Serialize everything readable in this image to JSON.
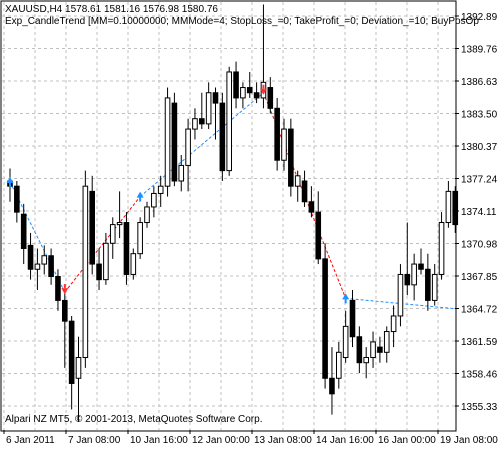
{
  "header": {
    "line1": "XAUUSD,H4  1578.61 1581.16 1576.98 1580.76",
    "line2": "Exp_CandleTrend [MM=0.10000000; MMMode=4; StopLoss_=0; TakeProfit_=0; Deviation_=10; BuyPosOp"
  },
  "footer": {
    "copyright": "Alpari NZ MT5, © 2001-2013, MetaQuotes Software Corp."
  },
  "colors": {
    "bull_body": "#ffffff",
    "bear_body": "#000000",
    "wick": "#000000",
    "grid": "#c0c0c0",
    "sell_line": "#ff0000",
    "buy_line": "#1e90ff",
    "sell_arrow": "#ff3030",
    "buy_arrow": "#1e90ff"
  },
  "chart_data": {
    "type": "candlestick",
    "symbol": "XAUUSD",
    "timeframe": "H4",
    "y_ticks": [
      "1392.89",
      "1389.76",
      "1386.63",
      "1383.50",
      "1380.37",
      "1377.24",
      "1374.11",
      "1370.98",
      "1367.85",
      "1364.72",
      "1361.59",
      "1358.46",
      "1355.33"
    ],
    "ylim": [
      1353.8,
      1394.0
    ],
    "x_ticks": [
      "6 Jan 2011",
      "7 Jan 08:00",
      "10 Jan 16:00",
      "12 Jan 00:00",
      "13 Jan 08:00",
      "14 Jan 16:00",
      "16 Jan 00:00",
      "19 Jan 08:00"
    ],
    "grid": true,
    "candles": [
      {
        "o": 1377.0,
        "h": 1378.2,
        "l": 1375.0,
        "c": 1376.5
      },
      {
        "o": 1376.5,
        "h": 1377.0,
        "l": 1373.0,
        "c": 1374.0
      },
      {
        "o": 1373.8,
        "h": 1374.8,
        "l": 1369.0,
        "c": 1370.5
      },
      {
        "o": 1370.8,
        "h": 1372.0,
        "l": 1367.5,
        "c": 1368.5
      },
      {
        "o": 1368.5,
        "h": 1370.5,
        "l": 1366.5,
        "c": 1369.0
      },
      {
        "o": 1369.0,
        "h": 1370.8,
        "l": 1368.0,
        "c": 1369.8
      },
      {
        "o": 1369.8,
        "h": 1370.5,
        "l": 1367.0,
        "c": 1367.8
      },
      {
        "o": 1367.8,
        "h": 1368.5,
        "l": 1364.5,
        "c": 1365.5
      },
      {
        "o": 1365.5,
        "h": 1366.5,
        "l": 1359.0,
        "c": 1363.5
      },
      {
        "o": 1363.5,
        "h": 1364.0,
        "l": 1355.0,
        "c": 1357.5
      },
      {
        "o": 1358.0,
        "h": 1362.0,
        "l": 1353.8,
        "c": 1360.0
      },
      {
        "o": 1360.0,
        "h": 1378.0,
        "l": 1359.0,
        "c": 1376.5
      },
      {
        "o": 1376.0,
        "h": 1377.5,
        "l": 1368.0,
        "c": 1369.0
      },
      {
        "o": 1369.0,
        "h": 1370.5,
        "l": 1366.5,
        "c": 1367.5
      },
      {
        "o": 1367.5,
        "h": 1372.0,
        "l": 1367.0,
        "c": 1371.0
      },
      {
        "o": 1371.0,
        "h": 1373.5,
        "l": 1369.5,
        "c": 1372.8
      },
      {
        "o": 1372.8,
        "h": 1376.0,
        "l": 1371.5,
        "c": 1373.0
      },
      {
        "o": 1373.0,
        "h": 1374.0,
        "l": 1367.0,
        "c": 1368.0
      },
      {
        "o": 1368.0,
        "h": 1370.5,
        "l": 1367.5,
        "c": 1370.0
      },
      {
        "o": 1370.0,
        "h": 1373.5,
        "l": 1369.5,
        "c": 1373.0
      },
      {
        "o": 1373.0,
        "h": 1375.0,
        "l": 1372.5,
        "c": 1374.5
      },
      {
        "o": 1374.5,
        "h": 1376.5,
        "l": 1373.5,
        "c": 1375.8
      },
      {
        "o": 1375.8,
        "h": 1377.5,
        "l": 1374.5,
        "c": 1376.5
      },
      {
        "o": 1376.5,
        "h": 1386.0,
        "l": 1375.5,
        "c": 1385.0
      },
      {
        "o": 1384.5,
        "h": 1385.5,
        "l": 1376.5,
        "c": 1377.0
      },
      {
        "o": 1377.0,
        "h": 1379.5,
        "l": 1376.0,
        "c": 1378.5
      },
      {
        "o": 1378.5,
        "h": 1383.0,
        "l": 1376.0,
        "c": 1382.0
      },
      {
        "o": 1382.0,
        "h": 1384.0,
        "l": 1381.0,
        "c": 1383.0
      },
      {
        "o": 1383.0,
        "h": 1385.5,
        "l": 1382.0,
        "c": 1382.5
      },
      {
        "o": 1382.5,
        "h": 1386.5,
        "l": 1382.0,
        "c": 1385.5
      },
      {
        "o": 1385.5,
        "h": 1386.0,
        "l": 1381.0,
        "c": 1384.5
      },
      {
        "o": 1384.5,
        "h": 1385.5,
        "l": 1377.0,
        "c": 1378.0
      },
      {
        "o": 1378.0,
        "h": 1388.0,
        "l": 1377.5,
        "c": 1387.5
      },
      {
        "o": 1387.5,
        "h": 1388.5,
        "l": 1384.0,
        "c": 1385.0
      },
      {
        "o": 1385.0,
        "h": 1386.5,
        "l": 1384.0,
        "c": 1386.0
      },
      {
        "o": 1386.0,
        "h": 1387.5,
        "l": 1385.0,
        "c": 1385.5
      },
      {
        "o": 1385.5,
        "h": 1386.5,
        "l": 1384.5,
        "c": 1385.0
      },
      {
        "o": 1385.0,
        "h": 1394.0,
        "l": 1384.0,
        "c": 1386.5
      },
      {
        "o": 1386.0,
        "h": 1387.0,
        "l": 1383.5,
        "c": 1384.0
      },
      {
        "o": 1384.0,
        "h": 1385.0,
        "l": 1378.0,
        "c": 1379.0
      },
      {
        "o": 1379.0,
        "h": 1383.0,
        "l": 1378.0,
        "c": 1382.0
      },
      {
        "o": 1382.0,
        "h": 1383.0,
        "l": 1375.5,
        "c": 1376.5
      },
      {
        "o": 1376.5,
        "h": 1378.0,
        "l": 1375.0,
        "c": 1377.5
      },
      {
        "o": 1377.0,
        "h": 1378.0,
        "l": 1374.5,
        "c": 1375.0
      },
      {
        "o": 1375.0,
        "h": 1376.5,
        "l": 1373.5,
        "c": 1374.0
      },
      {
        "o": 1374.0,
        "h": 1376.0,
        "l": 1369.0,
        "c": 1369.5
      },
      {
        "o": 1369.5,
        "h": 1371.0,
        "l": 1357.0,
        "c": 1358.0
      },
      {
        "o": 1358.0,
        "h": 1361.0,
        "l": 1354.5,
        "c": 1356.5
      },
      {
        "o": 1358.0,
        "h": 1361.5,
        "l": 1357.0,
        "c": 1360.5
      },
      {
        "o": 1360.0,
        "h": 1364.5,
        "l": 1359.5,
        "c": 1363.0
      },
      {
        "o": 1365.5,
        "h": 1366.5,
        "l": 1361.0,
        "c": 1362.0
      },
      {
        "o": 1362.0,
        "h": 1363.0,
        "l": 1358.5,
        "c": 1359.5
      },
      {
        "o": 1359.5,
        "h": 1361.0,
        "l": 1358.0,
        "c": 1360.0
      },
      {
        "o": 1360.0,
        "h": 1362.5,
        "l": 1359.0,
        "c": 1361.5
      },
      {
        "o": 1361.0,
        "h": 1362.0,
        "l": 1359.5,
        "c": 1360.5
      },
      {
        "o": 1360.5,
        "h": 1363.0,
        "l": 1359.5,
        "c": 1362.5
      },
      {
        "o": 1362.5,
        "h": 1365.0,
        "l": 1361.0,
        "c": 1364.0
      },
      {
        "o": 1364.0,
        "h": 1369.0,
        "l": 1363.0,
        "c": 1368.0
      },
      {
        "o": 1368.0,
        "h": 1373.0,
        "l": 1366.0,
        "c": 1367.0
      },
      {
        "o": 1367.0,
        "h": 1370.0,
        "l": 1365.5,
        "c": 1369.0
      },
      {
        "o": 1369.0,
        "h": 1370.5,
        "l": 1368.0,
        "c": 1368.5
      },
      {
        "o": 1368.5,
        "h": 1370.0,
        "l": 1364.5,
        "c": 1365.5
      },
      {
        "o": 1365.5,
        "h": 1369.0,
        "l": 1365.0,
        "c": 1368.0
      },
      {
        "o": 1368.0,
        "h": 1374.0,
        "l": 1367.5,
        "c": 1373.0
      },
      {
        "o": 1373.0,
        "h": 1377.0,
        "l": 1372.5,
        "c": 1376.0
      },
      {
        "o": 1376.0,
        "h": 1376.5,
        "l": 1372.0,
        "c": 1372.8
      }
    ],
    "signals": [
      {
        "type": "buy",
        "index": 0,
        "price": 1376.9
      },
      {
        "type": "sell",
        "index": 8,
        "price": 1366.3
      },
      {
        "type": "buy",
        "index": 19,
        "price": 1375.5
      },
      {
        "type": "sell",
        "index": 37,
        "price": 1385.5
      },
      {
        "type": "buy",
        "index": 49,
        "price": 1365.7
      }
    ],
    "trade_lines": [
      {
        "type": "buy",
        "from": {
          "index": 0,
          "price": 1376.9
        },
        "to": {
          "index": 8,
          "price": 1366.3
        }
      },
      {
        "type": "sell",
        "from": {
          "index": 8,
          "price": 1366.3
        },
        "to": {
          "index": 19,
          "price": 1375.5
        }
      },
      {
        "type": "buy",
        "from": {
          "index": 19,
          "price": 1375.5
        },
        "to": {
          "index": 37,
          "price": 1385.5
        }
      },
      {
        "type": "sell",
        "from": {
          "index": 37,
          "price": 1385.5
        },
        "to": {
          "index": 49,
          "price": 1365.7
        }
      },
      {
        "type": "buy",
        "from": {
          "index": 49,
          "price": 1365.7
        },
        "to": {
          "index": 65,
          "price": 1364.7
        }
      }
    ]
  }
}
